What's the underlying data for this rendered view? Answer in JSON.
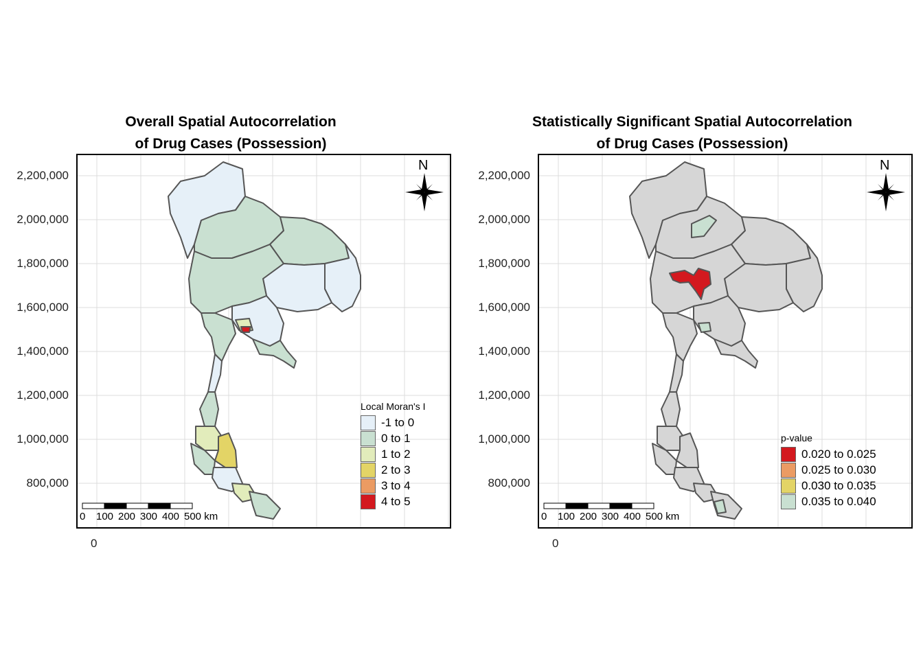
{
  "panels": [
    {
      "title_line1": "Overall Spatial Autocorrelation",
      "title_line2": "of Drug Cases (Possession)",
      "y_ticks": [
        "2,200,000",
        "2,000,000",
        "1,800,000",
        "1,600,000",
        "1,400,000",
        "1,200,000",
        "1,000,000",
        "800,000"
      ],
      "x_tick": "0",
      "north_label": "N",
      "scalebar": {
        "labels": [
          "0",
          "100",
          "200",
          "300",
          "400",
          "500 km"
        ]
      },
      "legend": {
        "title": "Local Moran's I",
        "items": [
          {
            "label": "-1 to 0",
            "color": "#e6f0f8"
          },
          {
            "label": "0 to 1",
            "color": "#c9e0d1"
          },
          {
            "label": "1 to 2",
            "color": "#e2ecbb"
          },
          {
            "label": "2 to 3",
            "color": "#e3d466"
          },
          {
            "label": "3 to 4",
            "color": "#eb9b63"
          },
          {
            "label": "4 to 5",
            "color": "#d3191f"
          }
        ]
      }
    },
    {
      "title_line1": "Statistically Significant Spatial Autocorrelation",
      "title_line2": "of Drug Cases (Possession)",
      "y_ticks": [
        "2,200,000",
        "2,000,000",
        "1,800,000",
        "1,600,000",
        "1,400,000",
        "1,200,000",
        "1,000,000",
        "800,000"
      ],
      "x_tick": "0",
      "north_label": "N",
      "scalebar": {
        "labels": [
          "0",
          "100",
          "200",
          "300",
          "400",
          "500 km"
        ]
      },
      "legend": {
        "title": "p-value",
        "items": [
          {
            "label": "0.020 to 0.025",
            "color": "#d3191f"
          },
          {
            "label": "0.025 to 0.030",
            "color": "#eb9b63"
          },
          {
            "label": "0.030 to 0.035",
            "color": "#e3d466"
          },
          {
            "label": "0.035 to 0.040",
            "color": "#c9e0d1"
          }
        ]
      }
    }
  ],
  "colors": {
    "not_significant": "#d6d6d6",
    "border": "#555555",
    "grid": "#dcdcdc"
  }
}
